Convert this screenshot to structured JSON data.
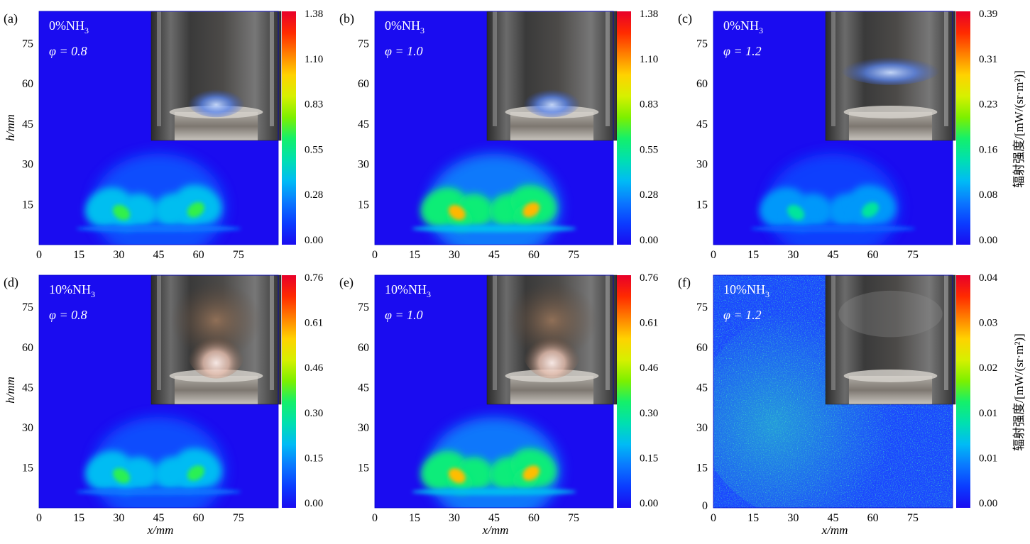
{
  "figure": {
    "x_axis_label": "x/mm",
    "y_axis_label": "h/mm",
    "colorbar_label": "辐射强度/[mW/(sr·m²)]",
    "x_ticks": [
      "0",
      "15",
      "30",
      "45",
      "60",
      "75"
    ],
    "y_ticks": [
      "15",
      "30",
      "45",
      "60",
      "75"
    ],
    "colormap": [
      "#1a0cf0",
      "#0b3cff",
      "#0a78ff",
      "#00bbf5",
      "#00e0b0",
      "#14f06a",
      "#7cf000",
      "#d6f000",
      "#ffd200",
      "#ff7f00",
      "#ff2a00",
      "#e8002a"
    ]
  },
  "chart_data": [
    {
      "type": "heatmap",
      "panel_label": "(a)",
      "nh3_label": "0%NH",
      "nh3_sub": "3",
      "phi_label": "φ = 0.8",
      "x_range": [
        0,
        90
      ],
      "y_range": [
        0,
        87
      ],
      "colorbar_ticks": [
        "1.38",
        "1.10",
        "0.83",
        "0.55",
        "0.28",
        "0.00"
      ],
      "colorbar_range": [
        0.0,
        1.38
      ],
      "peak_intensity": 0.7,
      "inset_photo": "blue flame photo"
    },
    {
      "type": "heatmap",
      "panel_label": "(b)",
      "nh3_label": "0%NH",
      "nh3_sub": "3",
      "phi_label": "φ = 1.0",
      "x_range": [
        0,
        90
      ],
      "y_range": [
        0,
        87
      ],
      "colorbar_ticks": [
        "1.38",
        "1.10",
        "0.83",
        "0.55",
        "0.28",
        "0.00"
      ],
      "colorbar_range": [
        0.0,
        1.38
      ],
      "peak_intensity": 1.1,
      "inset_photo": "blue flame photo"
    },
    {
      "type": "heatmap",
      "panel_label": "(c)",
      "nh3_label": "0%NH",
      "nh3_sub": "3",
      "phi_label": "φ = 1.2",
      "x_range": [
        0,
        90
      ],
      "y_range": [
        0,
        87
      ],
      "colorbar_ticks": [
        "0.39",
        "0.31",
        "0.23",
        "0.16",
        "0.08",
        "0.00"
      ],
      "colorbar_range": [
        0.0,
        0.39
      ],
      "peak_intensity": 0.16,
      "inset_photo": "blue flame photo"
    },
    {
      "type": "heatmap",
      "panel_label": "(d)",
      "nh3_label": "10%NH",
      "nh3_sub": "3",
      "phi_label": "φ = 0.8",
      "x_range": [
        0,
        90
      ],
      "y_range": [
        0,
        87
      ],
      "colorbar_ticks": [
        "0.76",
        "0.61",
        "0.46",
        "0.30",
        "0.15",
        "0.00"
      ],
      "colorbar_range": [
        0.0,
        0.76
      ],
      "peak_intensity": 0.38,
      "inset_photo": "pink-white flame photo"
    },
    {
      "type": "heatmap",
      "panel_label": "(e)",
      "nh3_label": "10%NH",
      "nh3_sub": "3",
      "phi_label": "φ = 1.0",
      "x_range": [
        0,
        90
      ],
      "y_range": [
        0,
        87
      ],
      "colorbar_ticks": [
        "0.76",
        "0.61",
        "0.46",
        "0.30",
        "0.15",
        "0.00"
      ],
      "colorbar_range": [
        0.0,
        0.76
      ],
      "peak_intensity": 0.6,
      "inset_photo": "pink-white flame photo"
    },
    {
      "type": "heatmap",
      "panel_label": "(f)",
      "nh3_label": "10%NH",
      "nh3_sub": "3",
      "phi_label": "φ = 1.2",
      "x_range": [
        0,
        90
      ],
      "y_range": [
        0,
        87
      ],
      "colorbar_ticks": [
        "0.04",
        "0.03",
        "0.02",
        "0.01",
        "0.01",
        "0.00"
      ],
      "colorbar_range": [
        0.0,
        0.04
      ],
      "peak_intensity": 0.013,
      "inset_photo": "faint flame photo",
      "noisy": true
    }
  ]
}
